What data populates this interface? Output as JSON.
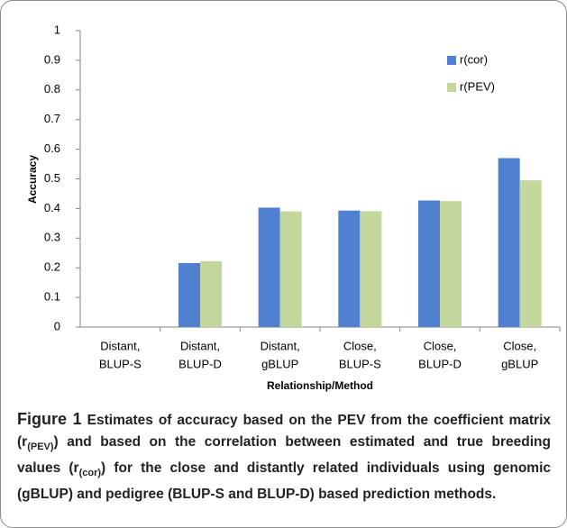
{
  "chart_data": {
    "type": "bar",
    "categories": [
      [
        "Distant,",
        "BLUP-S"
      ],
      [
        "Distant,",
        "BLUP-D"
      ],
      [
        "Distant,",
        "gBLUP"
      ],
      [
        "Close,",
        "BLUP-S"
      ],
      [
        "Close,",
        "BLUP-D"
      ],
      [
        "Close,",
        "gBLUP"
      ]
    ],
    "series": [
      {
        "name": "r(cor)",
        "color": "#4f81d0",
        "values": [
          null,
          0.216,
          0.403,
          0.393,
          0.427,
          0.57
        ]
      },
      {
        "name": "r(PEV)",
        "color": "#c3d69b",
        "values": [
          null,
          0.222,
          0.39,
          0.391,
          0.425,
          0.495
        ]
      }
    ],
    "ylim": [
      0,
      1
    ],
    "yticks": [
      0,
      0.1,
      0.2,
      0.3,
      0.4,
      0.5,
      0.6,
      0.7,
      0.8,
      0.9,
      1
    ],
    "y_label": "Accuracy",
    "x_label": "Relationship/Method",
    "legend": "upper-right",
    "grid": false
  },
  "caption": {
    "label": "Figure 1",
    "parts": [
      "Estimates of accuracy based on the PEV from the coefficient matrix (r",
      "(PEV)",
      ") and based on the correlation between estimated and true breeding values (r",
      "(cor)",
      ") for the close and distantly related individuals using genomic (gBLUP) and pedigree (BLUP-S and BLUP-D) based prediction methods."
    ]
  }
}
